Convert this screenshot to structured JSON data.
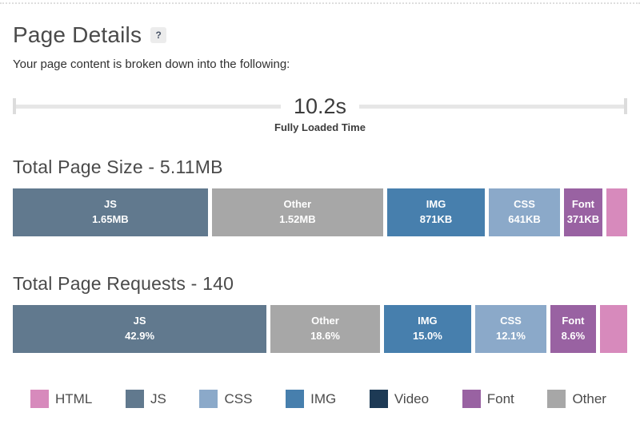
{
  "header": {
    "title": "Page Details",
    "help": "?",
    "subtitle": "Your page content is broken down into the following:"
  },
  "timeline": {
    "value": "10.2s",
    "label": "Fully Loaded Time"
  },
  "chart_data": [
    {
      "type": "bar",
      "variant": "stacked-horizontal",
      "title": "Total Page Size - 5.11MB",
      "total": "5.11MB",
      "segments": [
        {
          "category": "JS",
          "label": "JS",
          "value": "1.65MB",
          "color": "#61798e",
          "width_pct": 31.9
        },
        {
          "category": "Other",
          "label": "Other",
          "value": "1.52MB",
          "color": "#a7a7a7",
          "width_pct": 28.0
        },
        {
          "category": "IMG",
          "label": "IMG",
          "value": "871KB",
          "color": "#477fad",
          "width_pct": 16.0
        },
        {
          "category": "CSS",
          "label": "CSS",
          "value": "641KB",
          "color": "#8ba9c9",
          "width_pct": 11.6
        },
        {
          "category": "Font",
          "label": "Font",
          "value": "371KB",
          "color": "#9962a2",
          "width_pct": 6.3
        },
        {
          "category": "HTML",
          "label": "",
          "value": "",
          "color": "#d78abc",
          "width_pct": 3.4
        }
      ]
    },
    {
      "type": "bar",
      "variant": "stacked-horizontal",
      "title": "Total Page Requests - 140",
      "total": 140,
      "segments": [
        {
          "category": "JS",
          "label": "JS",
          "value": "42.9%",
          "color": "#61798e",
          "width_pct": 41.3
        },
        {
          "category": "Other",
          "label": "Other",
          "value": "18.6%",
          "color": "#a7a7a7",
          "width_pct": 17.8
        },
        {
          "category": "IMG",
          "label": "IMG",
          "value": "15.0%",
          "color": "#477fad",
          "width_pct": 14.2
        },
        {
          "category": "CSS",
          "label": "CSS",
          "value": "12.1%",
          "color": "#8ba9c9",
          "width_pct": 11.6
        },
        {
          "category": "Font",
          "label": "Font",
          "value": "8.6%",
          "color": "#9962a2",
          "width_pct": 7.4
        },
        {
          "category": "HTML",
          "label": "",
          "value": "",
          "color": "#d78abc",
          "width_pct": 4.0
        }
      ]
    }
  ],
  "legend": {
    "items": [
      {
        "label": "HTML",
        "color": "#d78abc"
      },
      {
        "label": "JS",
        "color": "#61798e"
      },
      {
        "label": "CSS",
        "color": "#8ba9c9"
      },
      {
        "label": "IMG",
        "color": "#477fad"
      },
      {
        "label": "Video",
        "color": "#1d3a55"
      },
      {
        "label": "Font",
        "color": "#9962a2"
      },
      {
        "label": "Other",
        "color": "#a7a7a7"
      }
    ]
  }
}
